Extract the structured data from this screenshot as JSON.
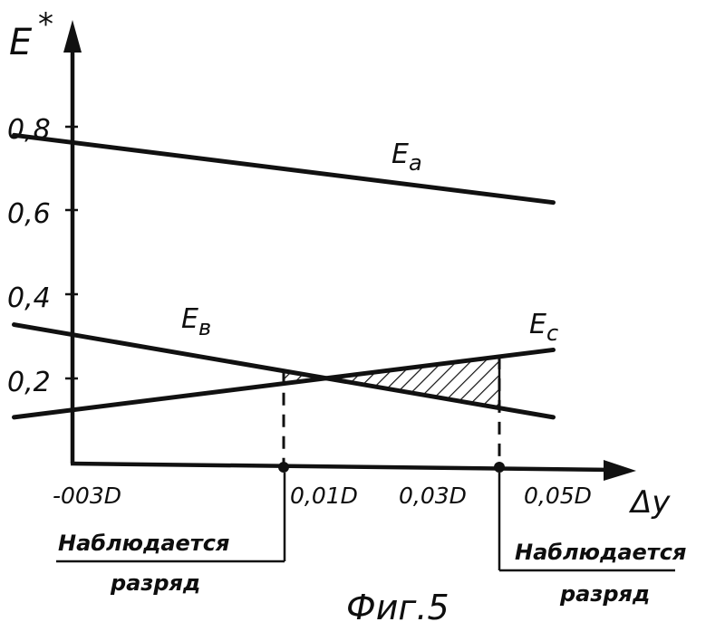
{
  "chart_data": {
    "type": "line",
    "y_axis_label": "E",
    "y_axis_label_sup": "*",
    "x_axis_label": "Δy",
    "y_ticks": [
      "0,2",
      "0,4",
      "0,6",
      "0,8"
    ],
    "x_ticks": [
      "-003D",
      "0,01D",
      "0,03D",
      "0,05D"
    ],
    "series": [
      {
        "name": "Ea",
        "name_main": "E",
        "name_sub": "a",
        "x": [
          -0.04,
          0.06
        ],
        "y": [
          0.78,
          0.62
        ]
      },
      {
        "name": "Eв",
        "name_main": "E",
        "name_sub": "в",
        "x": [
          -0.04,
          0.06
        ],
        "y": [
          0.33,
          0.11
        ]
      },
      {
        "name": "Ec",
        "name_main": "E",
        "name_sub": "c",
        "x": [
          -0.04,
          0.06
        ],
        "y": [
          0.11,
          0.27
        ]
      }
    ],
    "hatched_interval": [
      0.01,
      0.05
    ],
    "annotations": [
      {
        "line1": "Наблюдается",
        "line2": "разряд"
      },
      {
        "line1": "Наблюдается",
        "line2": "разряд"
      }
    ],
    "caption": "Фиг.5"
  }
}
